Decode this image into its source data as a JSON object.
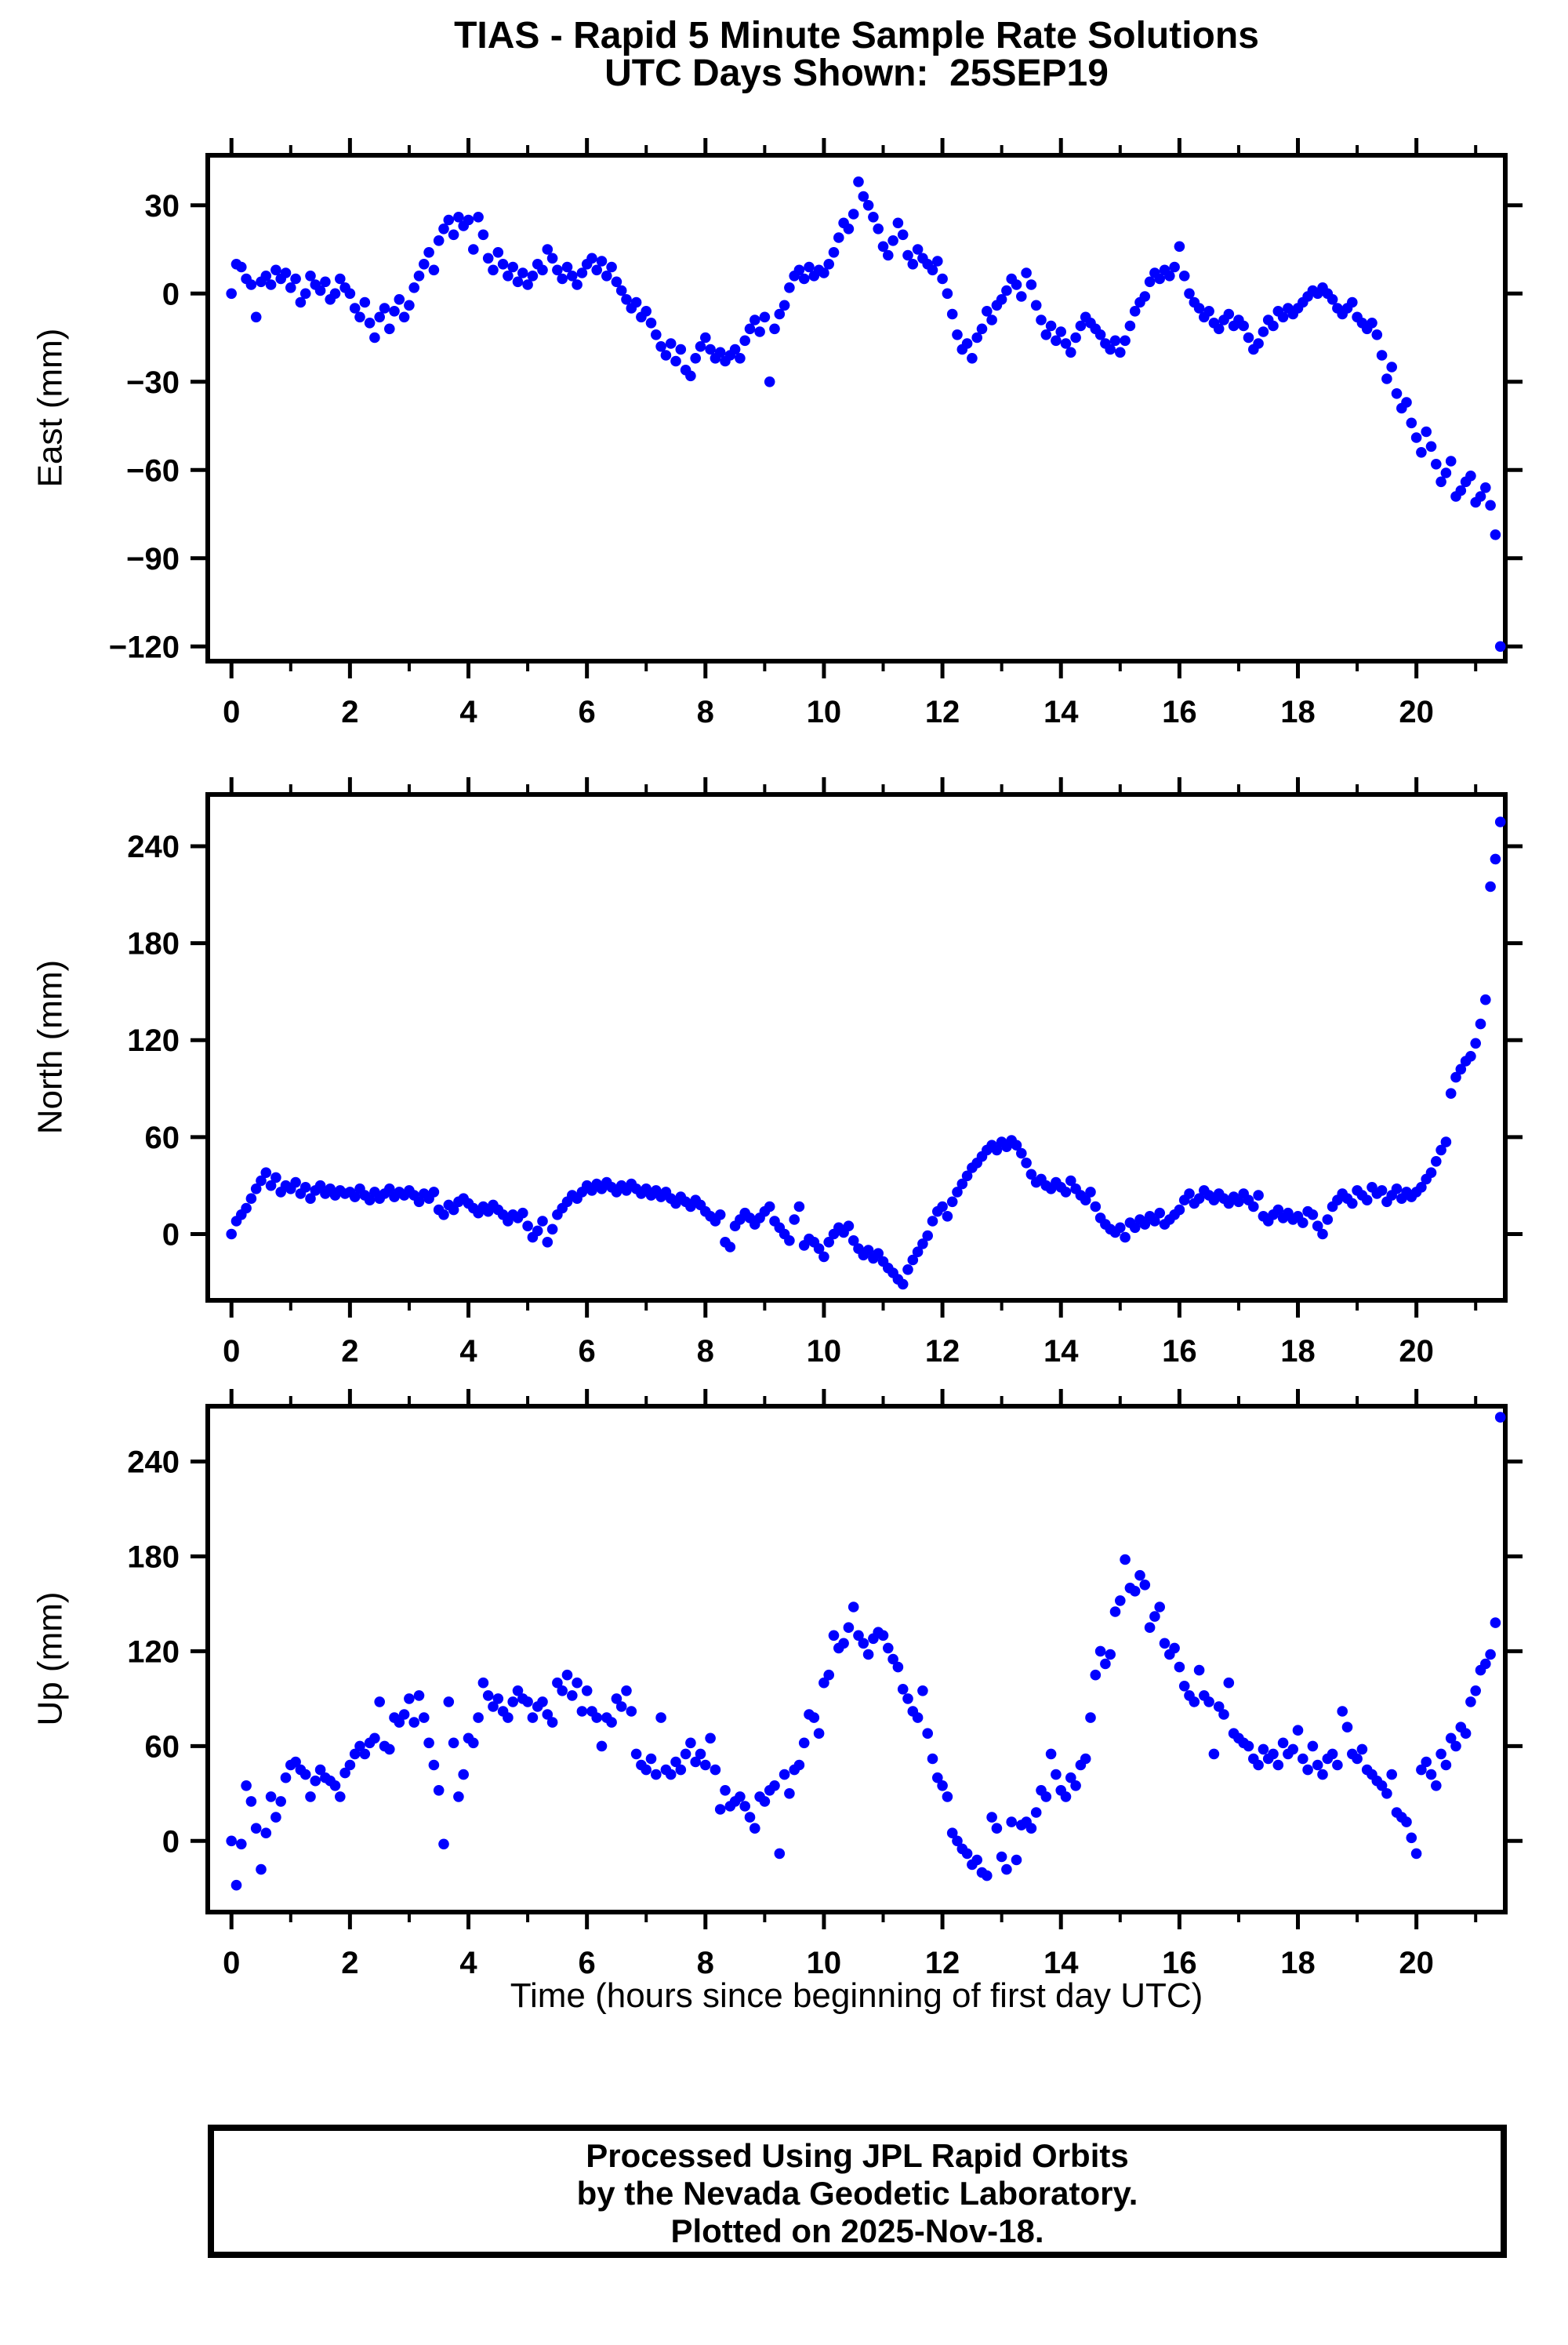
{
  "header": {
    "title_line1": "TIAS - Rapid 5 Minute Sample Rate Solutions",
    "title_line2": "UTC Days Shown:  25SEP19"
  },
  "footer": {
    "line1": "Processed Using JPL Rapid Orbits",
    "line2": "by the Nevada Geodetic Laboratory.",
    "line3": "Plotted on 2025-Nov-18."
  },
  "chart_data": {
    "type": "scatter",
    "station": "TIAS",
    "utc_day_shown": "25SEP19",
    "sample_interval_minutes": 5,
    "xlabel": "Time (hours since beginning of first day UTC)",
    "marker_color": "#0000FF",
    "axis_color": "#000000",
    "grid": false,
    "legend": "none",
    "x_start_hours": 0,
    "x_step_hours": 0.0833333,
    "xlim": [
      -0.4,
      21.5
    ],
    "x_major_ticks": [
      0,
      2,
      4,
      6,
      8,
      10,
      12,
      14,
      16,
      18,
      20
    ],
    "x_minor_tick_step": 1,
    "subplots": [
      {
        "ylabel": "East (mm)",
        "ylim": [
          -125,
          47
        ],
        "y_ticks": [
          30,
          0,
          -30,
          -60,
          -90,
          -120
        ],
        "values": [
          0,
          10,
          9,
          5,
          3,
          -8,
          4,
          6,
          3,
          8,
          5,
          7,
          2,
          5,
          -3,
          0,
          6,
          3,
          1,
          4,
          -2,
          0,
          5,
          2,
          0,
          -5,
          -8,
          -3,
          -10,
          -15,
          -8,
          -5,
          -12,
          -6,
          -2,
          -8,
          -4,
          2,
          6,
          10,
          14,
          8,
          18,
          22,
          25,
          20,
          26,
          23,
          25,
          15,
          26,
          20,
          12,
          8,
          14,
          10,
          6,
          9,
          4,
          7,
          3,
          6,
          10,
          8,
          15,
          12,
          8,
          5,
          9,
          6,
          3,
          7,
          10,
          12,
          8,
          11,
          6,
          9,
          4,
          1,
          -2,
          -5,
          -3,
          -8,
          -6,
          -10,
          -14,
          -18,
          -21,
          -17,
          -23,
          -19,
          -26,
          -28,
          -22,
          -18,
          -15,
          -19,
          -22,
          -20,
          -23,
          -21,
          -19,
          -22,
          -16,
          -12,
          -9,
          -13,
          -8,
          -30,
          -12,
          -7,
          -4,
          2,
          6,
          8,
          5,
          9,
          6,
          8,
          7,
          10,
          14,
          19,
          24,
          22,
          27,
          38,
          33,
          30,
          26,
          22,
          16,
          13,
          18,
          24,
          20,
          13,
          10,
          15,
          12,
          10,
          8,
          11,
          5,
          0,
          -7,
          -14,
          -19,
          -17,
          -22,
          -15,
          -12,
          -6,
          -9,
          -4,
          -2,
          1,
          5,
          3,
          -1,
          7,
          3,
          -4,
          -9,
          -14,
          -11,
          -16,
          -13,
          -17,
          -20,
          -15,
          -11,
          -8,
          -10,
          -12,
          -14,
          -17,
          -19,
          -16,
          -20,
          -16,
          -11,
          -6,
          -3,
          -1,
          4,
          7,
          5,
          8,
          6,
          9,
          16,
          6,
          0,
          -3,
          -5,
          -8,
          -6,
          -10,
          -12,
          -9,
          -7,
          -11,
          -9,
          -11,
          -15,
          -19,
          -17,
          -13,
          -9,
          -11,
          -6,
          -8,
          -5,
          -7,
          -5,
          -3,
          -1,
          1,
          0,
          2,
          0,
          -2,
          -5,
          -7,
          -5,
          -3,
          -8,
          -10,
          -12,
          -10,
          -14,
          -21,
          -29,
          -25,
          -34,
          -39,
          -37,
          -44,
          -49,
          -54,
          -47,
          -52,
          -58,
          -64,
          -61,
          -57,
          -69,
          -67,
          -64,
          -62,
          -71,
          -69,
          -66,
          -72,
          -82,
          -120
        ]
      },
      {
        "ylabel": "North (mm)",
        "ylim": [
          -41,
          272
        ],
        "y_ticks": [
          240,
          180,
          120,
          60,
          0
        ],
        "values": [
          0,
          8,
          12,
          16,
          22,
          28,
          33,
          38,
          30,
          35,
          26,
          30,
          28,
          32,
          25,
          29,
          22,
          27,
          30,
          25,
          28,
          24,
          27,
          25,
          26,
          23,
          28,
          24,
          21,
          26,
          22,
          25,
          28,
          23,
          26,
          24,
          27,
          24,
          20,
          25,
          22,
          26,
          15,
          12,
          18,
          15,
          20,
          22,
          19,
          16,
          13,
          17,
          14,
          18,
          15,
          12,
          8,
          12,
          10,
          13,
          5,
          -2,
          2,
          8,
          -5,
          3,
          12,
          16,
          20,
          24,
          22,
          26,
          30,
          27,
          31,
          28,
          32,
          29,
          26,
          30,
          27,
          31,
          28,
          25,
          28,
          24,
          27,
          23,
          26,
          22,
          19,
          23,
          20,
          17,
          21,
          18,
          14,
          11,
          8,
          12,
          -5,
          -8,
          5,
          9,
          13,
          10,
          6,
          10,
          14,
          17,
          8,
          4,
          0,
          -4,
          9,
          17,
          -7,
          -3,
          -5,
          -9,
          -14,
          -5,
          0,
          4,
          1,
          5,
          -4,
          -9,
          -13,
          -10,
          -15,
          -12,
          -17,
          -21,
          -24,
          -28,
          -31,
          -22,
          -16,
          -11,
          -6,
          -1,
          8,
          14,
          17,
          11,
          20,
          26,
          31,
          36,
          41,
          44,
          48,
          52,
          55,
          52,
          57,
          54,
          58,
          55,
          50,
          44,
          37,
          32,
          34,
          30,
          28,
          32,
          29,
          26,
          33,
          28,
          24,
          21,
          26,
          17,
          10,
          6,
          3,
          1,
          4,
          -2,
          7,
          4,
          9,
          6,
          11,
          8,
          13,
          6,
          9,
          12,
          15,
          21,
          25,
          19,
          22,
          27,
          24,
          21,
          25,
          22,
          19,
          23,
          20,
          25,
          21,
          17,
          24,
          11,
          8,
          12,
          15,
          10,
          13,
          9,
          11,
          7,
          14,
          12,
          5,
          0,
          9,
          17,
          21,
          25,
          22,
          19,
          27,
          24,
          21,
          29,
          25,
          27,
          20,
          24,
          28,
          22,
          26,
          23,
          26,
          29,
          34,
          38,
          45,
          52,
          57,
          87,
          97,
          102,
          107,
          110,
          118,
          130,
          145,
          215,
          232,
          255
        ]
      },
      {
        "ylabel": "Up (mm)",
        "ylim": [
          -45,
          275
        ],
        "y_ticks": [
          240,
          180,
          120,
          60,
          0
        ],
        "values": [
          0,
          -28,
          -2,
          35,
          25,
          8,
          -18,
          5,
          28,
          15,
          25,
          40,
          48,
          50,
          45,
          42,
          28,
          38,
          45,
          40,
          38,
          35,
          28,
          43,
          48,
          55,
          60,
          55,
          62,
          65,
          88,
          60,
          58,
          78,
          75,
          80,
          90,
          75,
          92,
          78,
          62,
          48,
          32,
          -2,
          88,
          62,
          28,
          42,
          65,
          62,
          78,
          100,
          92,
          85,
          90,
          82,
          78,
          88,
          95,
          90,
          88,
          78,
          85,
          88,
          80,
          75,
          100,
          95,
          105,
          92,
          100,
          82,
          95,
          82,
          78,
          60,
          78,
          75,
          90,
          85,
          95,
          82,
          55,
          48,
          45,
          52,
          42,
          78,
          45,
          42,
          50,
          45,
          55,
          62,
          50,
          55,
          48,
          65,
          45,
          20,
          32,
          22,
          25,
          28,
          22,
          15,
          8,
          28,
          25,
          32,
          35,
          -8,
          42,
          30,
          45,
          48,
          62,
          80,
          78,
          68,
          100,
          105,
          130,
          122,
          125,
          135,
          148,
          130,
          125,
          118,
          128,
          132,
          130,
          122,
          115,
          110,
          96,
          90,
          82,
          78,
          95,
          68,
          52,
          40,
          35,
          28,
          5,
          0,
          -5,
          -8,
          -15,
          -12,
          -20,
          -22,
          15,
          8,
          -10,
          -18,
          12,
          -12,
          10,
          12,
          8,
          18,
          32,
          28,
          55,
          42,
          32,
          28,
          40,
          35,
          48,
          52,
          78,
          105,
          120,
          112,
          118,
          145,
          152,
          178,
          160,
          158,
          168,
          162,
          135,
          142,
          148,
          125,
          118,
          122,
          110,
          98,
          92,
          88,
          108,
          92,
          88,
          55,
          85,
          80,
          100,
          68,
          65,
          62,
          60,
          52,
          48,
          58,
          52,
          55,
          48,
          62,
          55,
          58,
          70,
          52,
          45,
          60,
          48,
          42,
          52,
          55,
          48,
          82,
          72,
          55,
          52,
          58,
          45,
          42,
          38,
          35,
          30,
          42,
          18,
          15,
          12,
          2,
          -8,
          45,
          50,
          42,
          35,
          55,
          48,
          65,
          60,
          72,
          68,
          88,
          95,
          108,
          112,
          118,
          138,
          268
        ]
      }
    ]
  }
}
